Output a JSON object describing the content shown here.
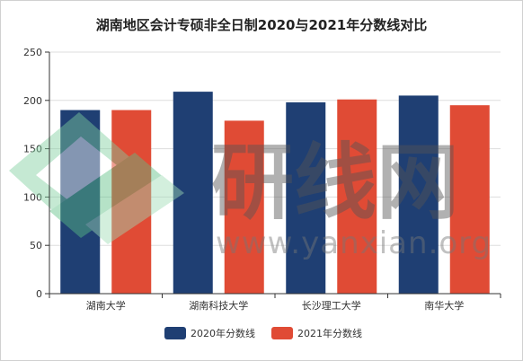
{
  "chart_data": {
    "type": "bar",
    "title": "湖南地区会计专硕非全日制2020与2021年分数线对比",
    "categories": [
      "湖南大学",
      "湖南科技大学",
      "长沙理工大学",
      "南华大学"
    ],
    "series": [
      {
        "name": "2020年分数线",
        "color": "#1f3f73",
        "values": [
          190,
          209,
          198,
          205
        ]
      },
      {
        "name": "2021年分数线",
        "color": "#e04b35",
        "values": [
          190,
          179,
          201,
          195
        ]
      }
    ],
    "ylim": [
      0,
      250
    ],
    "yticks": [
      "0",
      "50",
      "100",
      "150",
      "200",
      "250"
    ],
    "grid": true,
    "legend": "bottom"
  },
  "watermark": {
    "text_cn": "研线网",
    "text_url": "www.yanxian.org"
  }
}
